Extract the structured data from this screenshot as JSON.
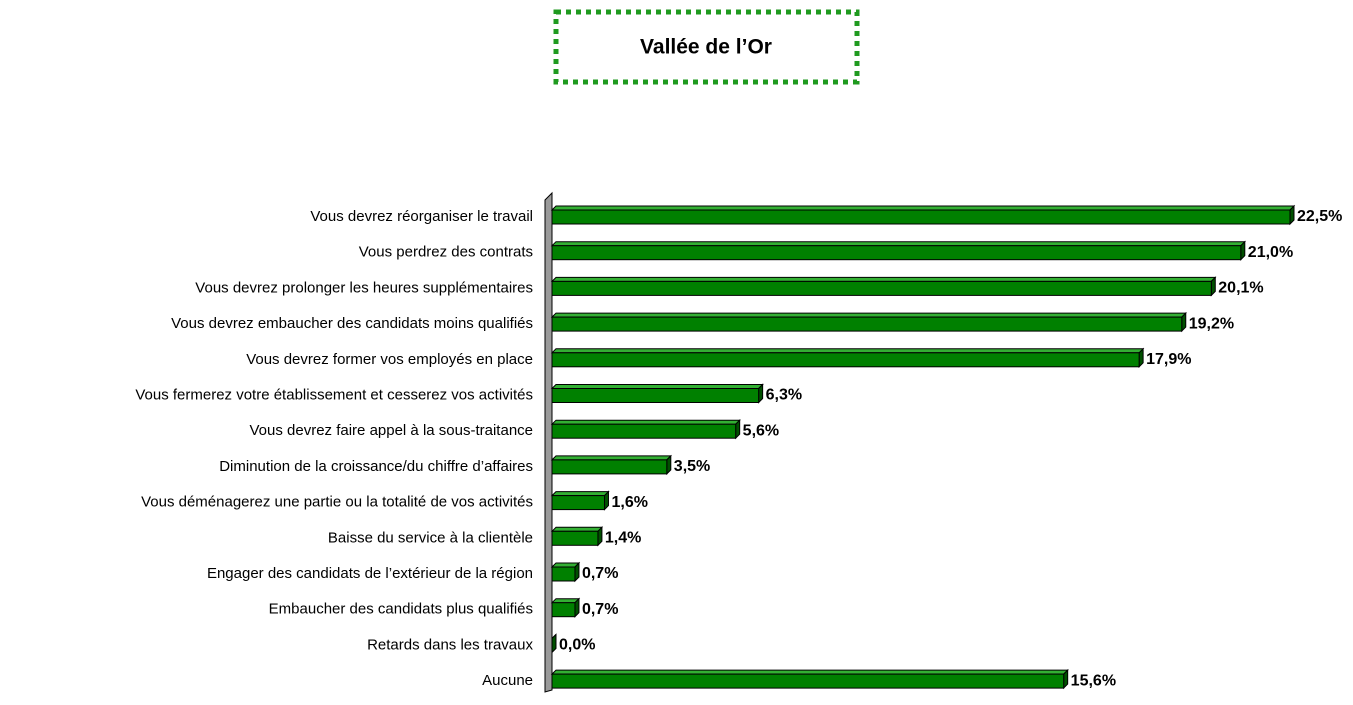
{
  "chart_data": {
    "type": "bar",
    "orientation": "horizontal",
    "title": "Vallée de l’Or",
    "color": "#008000",
    "categories": [
      "Vous devrez réorganiser le travail",
      "Vous perdrez des contrats",
      "Vous devrez prolonger les heures supplémentaires",
      "Vous devrez embaucher des candidats moins qualifiés",
      "Vous devrez former vos employés en place",
      "Vous fermerez votre établissement et cesserez vos activités",
      "Vous devrez faire appel à la sous-traitance",
      "Diminution de la croissance/du chiffre d’affaires",
      "Vous déménagerez une partie ou la totalité de vos activités",
      "Baisse du service à la clientèle",
      "Engager des candidats de l’extérieur de la région",
      "Embaucher des candidats plus qualifiés",
      "Retards dans les travaux",
      "Aucune"
    ],
    "values": [
      22.5,
      21.0,
      20.1,
      19.2,
      17.9,
      6.3,
      5.6,
      3.5,
      1.6,
      1.4,
      0.7,
      0.7,
      0.0,
      15.6
    ],
    "value_labels": [
      "22,5%",
      "21,0%",
      "20,1%",
      "19,2%",
      "17,9%",
      "6,3%",
      "5,6%",
      "3,5%",
      "1,6%",
      "1,4%",
      "0,7%",
      "0,7%",
      "0,0%",
      "15,6%"
    ]
  }
}
